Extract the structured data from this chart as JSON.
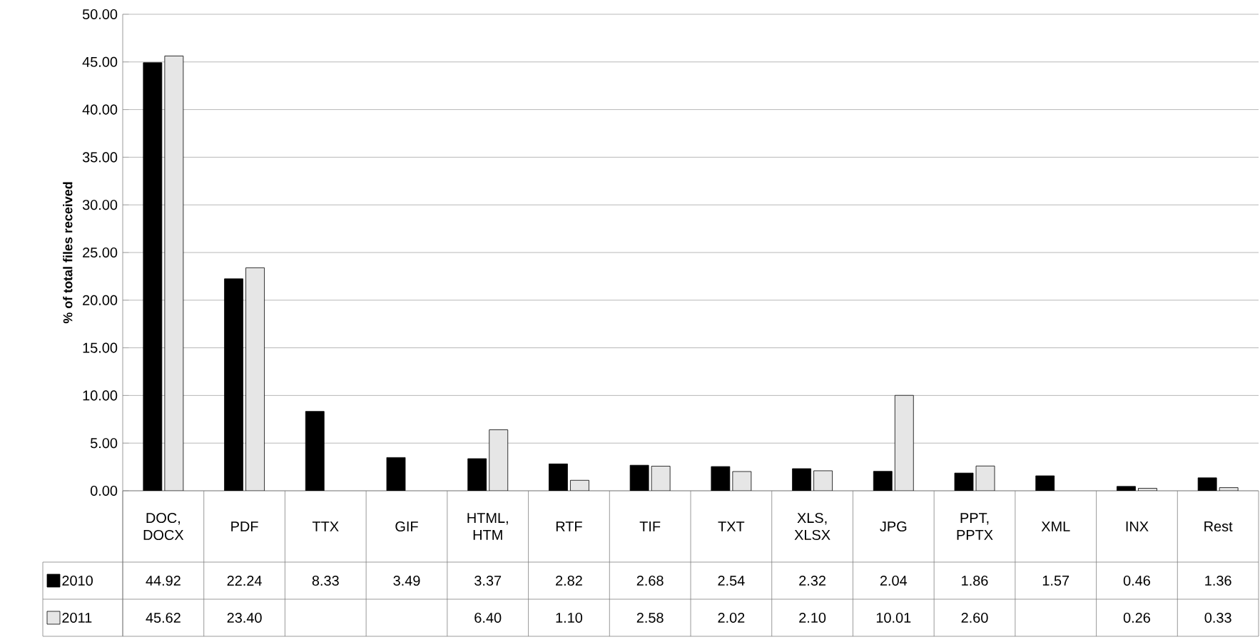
{
  "chart_data": {
    "type": "bar",
    "ylabel": "% of total files received",
    "categories": [
      "DOC, DOCX",
      "PDF",
      "TTX",
      "GIF",
      "HTML, HTM",
      "RTF",
      "TIF",
      "TXT",
      "XLS, XLSX",
      "JPG",
      "PPT, PPTX",
      "XML",
      "INX",
      "Rest"
    ],
    "series": [
      {
        "name": "2010",
        "color": "#000000",
        "values": [
          44.92,
          22.24,
          8.33,
          3.49,
          3.37,
          2.82,
          2.68,
          2.54,
          2.32,
          2.04,
          1.86,
          1.57,
          0.46,
          1.36
        ],
        "value_labels": [
          "44.92",
          "22.24",
          "8.33",
          "3.49",
          "3.37",
          "2.82",
          "2.68",
          "2.54",
          "2.32",
          "2.04",
          "1.86",
          "1.57",
          "0.46",
          "1.36"
        ]
      },
      {
        "name": "2011",
        "color": "#e6e6e6",
        "values": [
          45.62,
          23.4,
          null,
          null,
          6.4,
          1.1,
          2.58,
          2.02,
          2.1,
          10.01,
          2.6,
          null,
          0.26,
          0.33
        ],
        "value_labels": [
          "45.62",
          "23.40",
          null,
          null,
          "6.40",
          "1.10",
          "2.58",
          "2.02",
          "2.10",
          "10.01",
          "2.60",
          null,
          "0.26",
          "0.33"
        ]
      }
    ],
    "ylim": [
      0,
      50
    ],
    "yticks": [
      {
        "value": 0,
        "label": "0.00"
      },
      {
        "value": 5,
        "label": "5.00"
      },
      {
        "value": 10,
        "label": "10.00"
      },
      {
        "value": 15,
        "label": "15.00"
      },
      {
        "value": 20,
        "label": "20.00"
      },
      {
        "value": 25,
        "label": "25.00"
      },
      {
        "value": 30,
        "label": "30.00"
      },
      {
        "value": 35,
        "label": "35.00"
      },
      {
        "value": 40,
        "label": "40.00"
      },
      {
        "value": 45,
        "label": "45.00"
      },
      {
        "value": 50,
        "label": "50.00"
      }
    ],
    "grid": "y",
    "legend": "bottom left"
  }
}
